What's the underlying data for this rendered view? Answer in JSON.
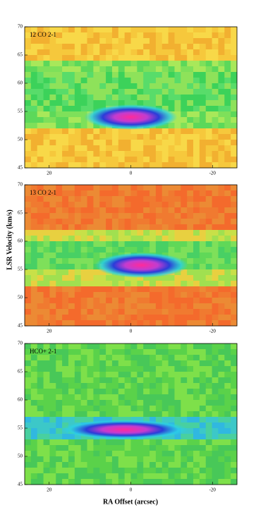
{
  "chart_data": [
    {
      "type": "heatmap",
      "label": "12 CO 2-1",
      "xlim": [
        26,
        -26
      ],
      "ylim": [
        45,
        70
      ],
      "xticks": [
        20,
        0,
        -20
      ],
      "yticks": [
        45,
        50,
        55,
        60,
        65,
        70
      ]
    },
    {
      "type": "heatmap",
      "label": "13 CO 2-1",
      "ylabel": "LSR Velocity (km/s)",
      "xlim": [
        26,
        -26
      ],
      "ylim": [
        45,
        70
      ],
      "xticks": [
        20,
        0,
        -20
      ],
      "yticks": [
        45,
        50,
        55,
        60,
        65,
        70
      ]
    },
    {
      "type": "heatmap",
      "label": "HCO+ 2-1",
      "xlabel": "RA Offset (arcsec)",
      "xlim": [
        26,
        -26
      ],
      "ylim": [
        45,
        70
      ],
      "xticks": [
        20,
        0,
        -20
      ],
      "yticks": [
        45,
        50,
        55,
        60,
        65,
        70
      ]
    }
  ]
}
